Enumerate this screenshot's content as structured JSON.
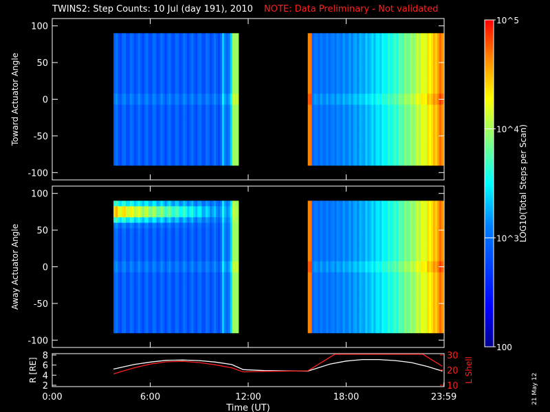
{
  "header": {
    "title": "TWINS2: Step Counts: 10 Jul (day 191), 2010",
    "note": "NOTE: Data Preliminary - Not validated",
    "note_color": "#ff2020",
    "date_stamp": "21 May 12"
  },
  "chart_data": [
    {
      "type": "heatmap",
      "panel": "toward",
      "ylabel": "Toward Actuator Angle",
      "ylim": [
        -110,
        110
      ],
      "yticks": [
        100,
        50,
        0,
        -50,
        -100
      ],
      "xlim_hours": [
        0,
        24
      ],
      "data_segments_hours": [
        [
          3.75,
          11.4
        ],
        [
          15.65,
          23.95
        ]
      ],
      "angle_range": [
        -90,
        90
      ],
      "value_scale": "log10",
      "summary": "Mostly low counts (~10^2.5-10^3) in first segment; second segment rises from ~10^3 to ~10^5 toward 23:59, with red bands at 15:40 and 23:30-23:59"
    },
    {
      "type": "heatmap",
      "panel": "away",
      "ylabel": "Away Actuator Angle",
      "ylim": [
        -110,
        110
      ],
      "yticks": [
        100,
        50,
        0,
        -50,
        -100
      ],
      "xlim_hours": [
        0,
        24
      ],
      "data_segments_hours": [
        [
          3.75,
          11.4
        ],
        [
          15.65,
          23.95
        ]
      ],
      "angle_range": [
        -90,
        90
      ],
      "value_scale": "log10",
      "summary": "Bright band near +75 deg (10^4-10^5) decaying after 06:00 in first segment; second segment mirrors toward panel"
    },
    {
      "type": "line",
      "panel": "orbit",
      "ylabel_left": "R [RE]",
      "ylabel_right": "L Shell",
      "xlabel": "Time (UT)",
      "x_tick_labels": [
        "0:00",
        "6:00",
        "12:00",
        "18:00",
        "23:59"
      ],
      "x_tick_hours": [
        0,
        6,
        12,
        18,
        23.983
      ],
      "ylim_left": [
        2,
        8
      ],
      "yticks_left": [
        2,
        4,
        6,
        8
      ],
      "ylim_right": [
        10,
        30
      ],
      "yticks_right": [
        10,
        20,
        30
      ],
      "series": [
        {
          "name": "R",
          "color": "#ffffff",
          "axis": "left",
          "x": [
            3.75,
            5,
            6,
            7,
            8,
            9,
            10,
            11,
            11.7,
            13,
            15.65,
            17,
            18,
            19,
            20,
            21,
            22,
            23,
            23.9
          ],
          "y": [
            5.2,
            6.1,
            6.6,
            6.95,
            7.0,
            6.9,
            6.6,
            6.1,
            5.1,
            4.9,
            4.8,
            6.2,
            6.8,
            7.1,
            7.1,
            6.9,
            6.5,
            5.7,
            4.8
          ]
        },
        {
          "name": "L Shell",
          "color": "#ff2020",
          "axis": "right",
          "x": [
            3.75,
            5,
            6,
            7,
            8,
            9,
            10,
            11,
            11.7,
            13,
            15.65,
            17.3,
            22.7,
            23.9
          ],
          "y": [
            17.5,
            21.5,
            24.0,
            25.5,
            25.8,
            25.0,
            23.5,
            21.5,
            18.8,
            19.2,
            19.5,
            30.5,
            30.5,
            22.5
          ]
        }
      ]
    },
    {
      "type": "colorbar",
      "label": "LOG10(Total Steps per Scan)",
      "tick_labels": [
        "10^5",
        "10^4",
        "10^3",
        "100"
      ],
      "tick_log_values": [
        5,
        4,
        3,
        2
      ],
      "range_log": [
        2,
        5
      ]
    }
  ]
}
